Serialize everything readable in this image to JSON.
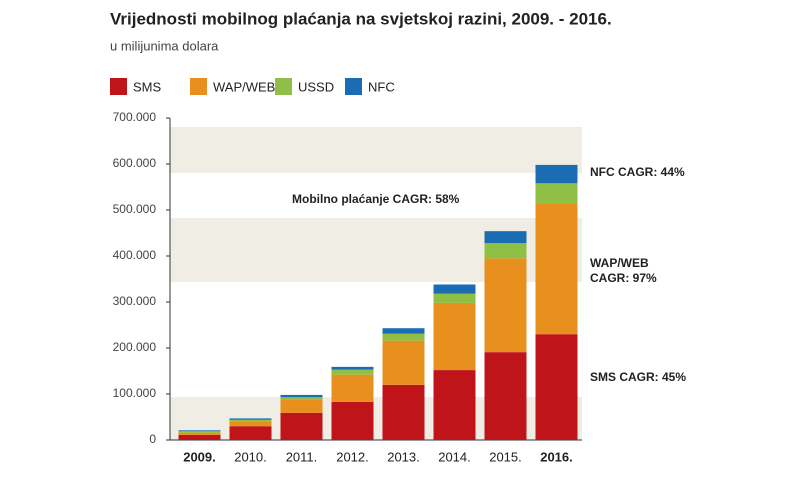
{
  "chart_data": {
    "type": "stacked-bar",
    "title": "Vrijednosti mobilnog plaćanja na svjetskoj razini, 2009. - 2016.",
    "subtitle": "u milijunima dolara",
    "categories": [
      "2009.",
      "2010.",
      "2011.",
      "2012.",
      "2013.",
      "2014.",
      "2015.",
      "2016."
    ],
    "series": [
      {
        "name": "SMS",
        "color": "#c0141b",
        "values": [
          11000,
          30000,
          59000,
          83000,
          120000,
          152000,
          191000,
          230000
        ]
      },
      {
        "name": "WAP/WEB",
        "color": "#e8901e",
        "values": [
          5000,
          10000,
          28000,
          59000,
          96000,
          146000,
          204000,
          285000
        ]
      },
      {
        "name": "USSD",
        "color": "#8fc045",
        "values": [
          3000,
          4000,
          6000,
          11000,
          15000,
          20000,
          33000,
          43000
        ]
      },
      {
        "name": "NFC",
        "color": "#1b6db3",
        "values": [
          2000,
          3000,
          5000,
          6000,
          12000,
          20000,
          26000,
          40000
        ]
      }
    ],
    "ylim": [
      0,
      700000
    ],
    "yticks": [
      0,
      {
        "value": 100000,
        "label": "100.000"
      },
      {
        "value": 200000,
        "label": "200.000"
      },
      {
        "value": 300000,
        "label": "300.000"
      },
      {
        "value": 400000,
        "label": "400.000"
      },
      {
        "value": 500000,
        "label": "500.000"
      },
      {
        "value": 600000,
        "label": "600.000"
      },
      {
        "value": 700000,
        "label": "700.000"
      }
    ],
    "annotations": [
      "Mobilno plaćanje CAGR: 58%",
      "NFC CAGR: 44%",
      "WAP/WEB CAGR: 97%",
      "SMS CAGR: 45%"
    ]
  }
}
